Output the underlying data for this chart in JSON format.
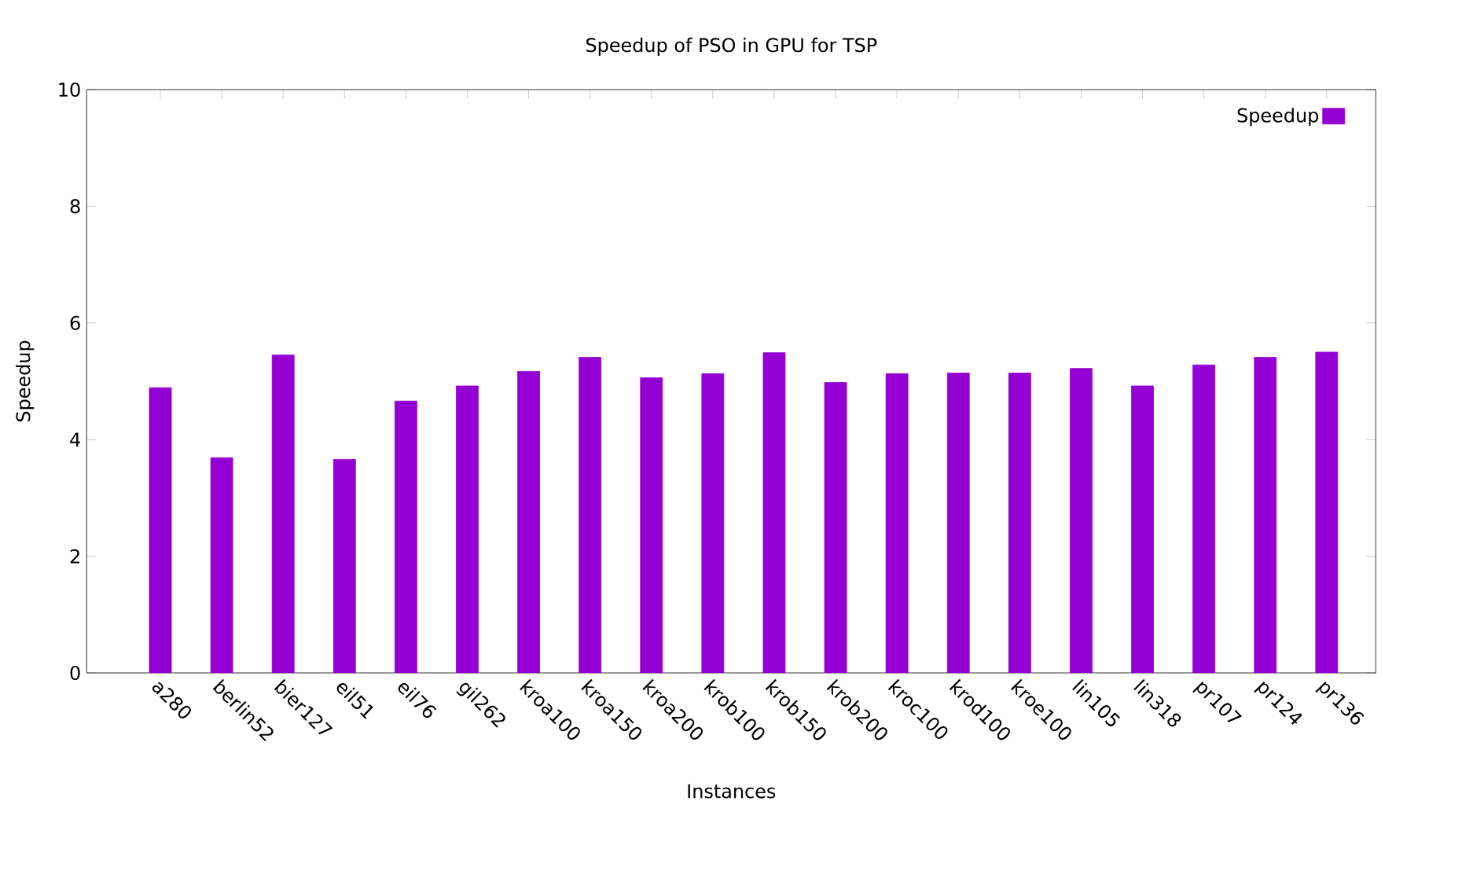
{
  "chart_data": {
    "type": "bar",
    "title": "Speedup of PSO in GPU for TSP",
    "xlabel": "Instances",
    "ylabel": "Speedup",
    "categories": [
      "a280",
      "berlin52",
      "bier127",
      "eil51",
      "eil76",
      "gil262",
      "kroa100",
      "kroa150",
      "kroa200",
      "krob100",
      "krob150",
      "krob200",
      "kroc100",
      "krod100",
      "kroe100",
      "lin105",
      "lin318",
      "pr107",
      "pr124",
      "pr136"
    ],
    "series": [
      {
        "name": "Speedup",
        "color": "#9400d3",
        "values": [
          4.89,
          3.69,
          5.45,
          3.66,
          4.66,
          4.92,
          5.17,
          5.41,
          5.06,
          5.13,
          5.49,
          4.98,
          5.13,
          5.14,
          5.14,
          5.22,
          4.92,
          5.28,
          5.41,
          5.5
        ]
      }
    ],
    "ylim": [
      0,
      10
    ],
    "yticks": [
      0,
      2,
      4,
      6,
      8,
      10
    ],
    "legend": "top right",
    "grid": false
  }
}
